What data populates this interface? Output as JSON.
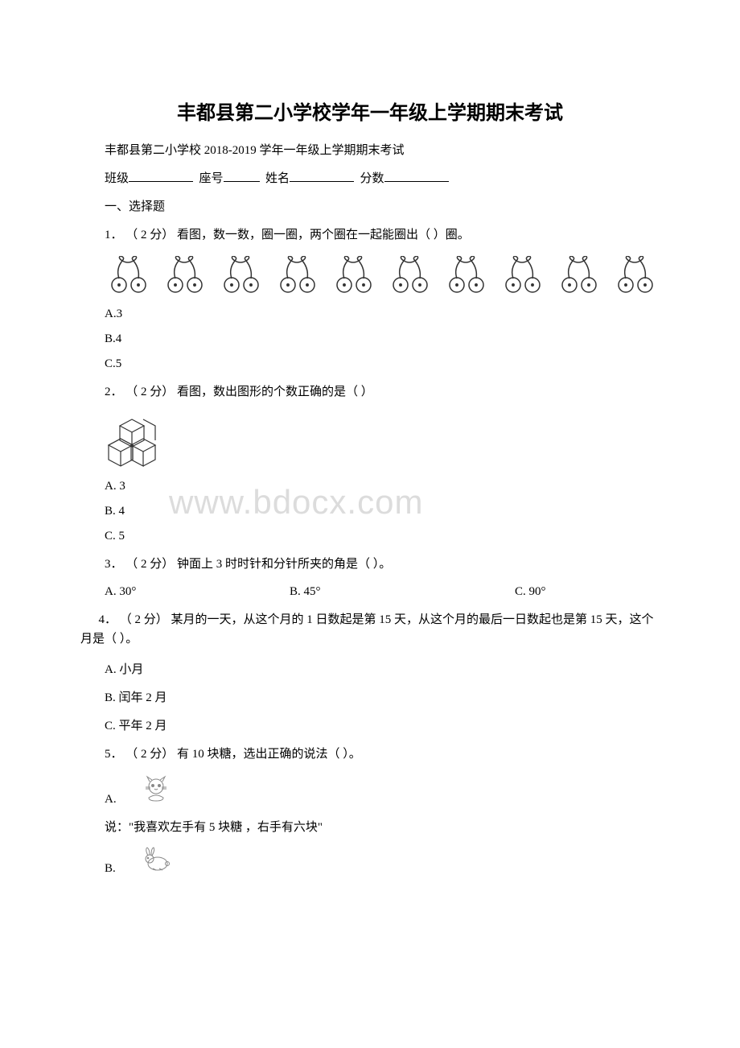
{
  "watermark": "www.bdocx.com",
  "title": "丰都县第二小学校学年一年级上学期期末考试",
  "subtitle": "丰都县第二小学校 2018-2019 学年一年级上学期期末考试",
  "form": {
    "class_label": "班级",
    "seat_label": "座号",
    "name_label": "姓名",
    "score_label": "分数"
  },
  "section1": "一、选择题",
  "q1": {
    "text": "1．  （ 2 分） 看图，数一数，圈一圈，两个圈在一起能圈出（  ）圈。",
    "cherry_pairs": 10,
    "optA": "A.3",
    "optB": "B.4",
    "optC": "C.5"
  },
  "q2": {
    "text": "2．  （ 2 分） 看图，数出图形的个数正确的是（  ）",
    "optA": "A. 3",
    "optB": "B. 4",
    "optC": "C. 5"
  },
  "q3": {
    "text": "3．  （ 2 分） 钟面上 3 时时针和分针所夹的角是（   ）。",
    "optA": "A. 30°",
    "optB": "B. 45°",
    "optC": "C. 90°"
  },
  "q4": {
    "text": "4．  （ 2 分） 某月的一天，从这个月的 1 日数起是第 15 天，从这个月的最后一日数起也是第 15 天，这个月是（  ）。",
    "optA": "A. 小月",
    "optB": "B. 闰年 2 月",
    "optC": "C. 平年 2 月"
  },
  "q5": {
    "text": "5．  （ 2 分） 有 10 块糖，选出正确的说法（  ）。",
    "optA_prefix": "A.",
    "optA_text": "说：\"我喜欢左手有 5 块糖 ，右手有六块\"",
    "optB_prefix": "B."
  },
  "colors": {
    "text": "#000000",
    "background": "#ffffff",
    "watermark": "#dcdcdc",
    "stroke": "#333333"
  }
}
